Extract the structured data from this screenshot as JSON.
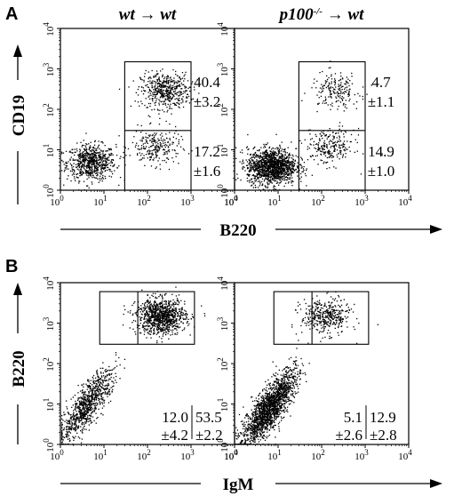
{
  "panels": [
    {
      "letter": "A",
      "xlabel": "B220",
      "ylabel": "CD19",
      "titles": [
        "wt → wt",
        "p100"
      ],
      "title_superscript": "-/-",
      "title_suffix": " → wt",
      "tick_labels": [
        "10",
        "0",
        "10",
        "1",
        "10",
        "2",
        "10",
        "3",
        "10",
        "4"
      ]
    },
    {
      "letter": "B",
      "xlabel": "IgM",
      "ylabel": "B220",
      "tick_labels": [
        "10",
        "0",
        "10",
        "1",
        "10",
        "2",
        "10",
        "3",
        "10",
        "4"
      ]
    }
  ],
  "chart_data": [
    {
      "type": "scatter",
      "panel": "A",
      "title": "wt → wt",
      "xlabel": "B220",
      "ylabel": "CD19",
      "xscale": "log",
      "yscale": "log",
      "xlim": [
        1,
        10000
      ],
      "ylim": [
        1,
        10000
      ],
      "gates": [
        {
          "x": [
            30,
            1000
          ],
          "y": [
            30,
            1500
          ],
          "value": "17.2",
          "sd": "±1.6"
        },
        {
          "x": [
            30,
            1000
          ],
          "y": [
            30,
            1500
          ],
          "value": "40.4",
          "sd": "±3.2"
        }
      ],
      "populations": [
        {
          "cx": 5,
          "cy": 5,
          "n": 700
        },
        {
          "cx": 250,
          "cy": 300,
          "n": 500
        },
        {
          "cx": 150,
          "cy": 12,
          "n": 250
        }
      ]
    },
    {
      "type": "scatter",
      "panel": "A",
      "title": "p100-/- → wt",
      "xlabel": "B220",
      "ylabel": "CD19",
      "xscale": "log",
      "yscale": "log",
      "xlim": [
        1,
        10000
      ],
      "ylim": [
        1,
        10000
      ],
      "gates": [
        {
          "x": [
            30,
            1000
          ],
          "y": [
            30,
            1500
          ],
          "value": "14.9",
          "sd": "±1.0"
        },
        {
          "x": [
            30,
            1000
          ],
          "y": [
            30,
            1500
          ],
          "value": "4.7",
          "sd": "±1.1"
        }
      ],
      "populations": [
        {
          "cx": 7,
          "cy": 4,
          "n": 1400
        },
        {
          "cx": 200,
          "cy": 300,
          "n": 200
        },
        {
          "cx": 150,
          "cy": 12,
          "n": 250
        }
      ]
    },
    {
      "type": "scatter",
      "panel": "B",
      "xlabel": "IgM",
      "ylabel": "B220",
      "xscale": "log",
      "yscale": "log",
      "xlim": [
        1,
        10000
      ],
      "ylim": [
        1,
        10000
      ],
      "gates": [
        {
          "x": [
            8,
            1200
          ],
          "y": [
            300,
            6000
          ],
          "value": "12.0",
          "sd": "±4.2"
        },
        {
          "x": [
            8,
            1200
          ],
          "y": [
            300,
            6000
          ],
          "value": "53.5",
          "sd": "±2.2"
        }
      ],
      "populations": [
        {
          "cx": 4,
          "cy": 10,
          "n": 900
        },
        {
          "cx": 200,
          "cy": 1500,
          "n": 1000
        }
      ]
    },
    {
      "type": "scatter",
      "panel": "B",
      "xlabel": "IgM",
      "ylabel": "B220",
      "xscale": "log",
      "yscale": "log",
      "xlim": [
        1,
        10000
      ],
      "ylim": [
        1,
        10000
      ],
      "gates": [
        {
          "x": [
            8,
            1200
          ],
          "y": [
            300,
            6000
          ],
          "value": "5.1",
          "sd": "±2.6"
        },
        {
          "x": [
            8,
            1200
          ],
          "y": [
            300,
            6000
          ],
          "value": "12.9",
          "sd": "±2.8"
        }
      ],
      "populations": [
        {
          "cx": 6,
          "cy": 8,
          "n": 1800
        },
        {
          "cx": 120,
          "cy": 1500,
          "n": 400
        }
      ]
    }
  ]
}
